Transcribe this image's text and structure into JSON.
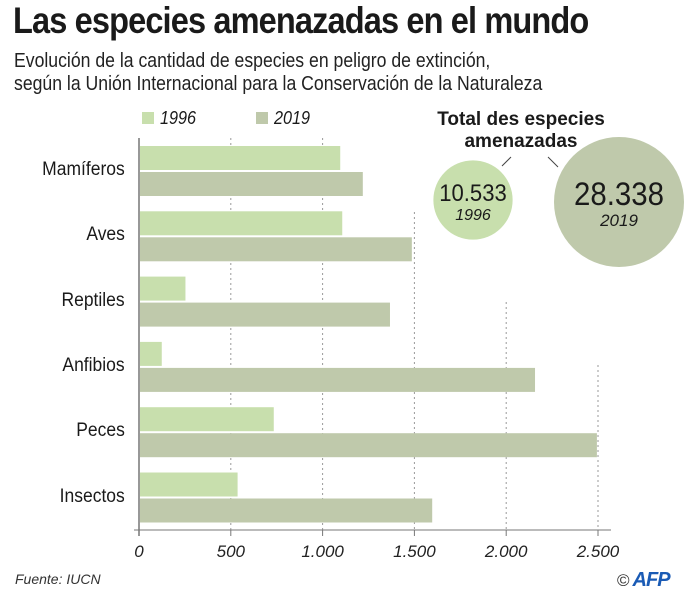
{
  "header": {
    "title": "Las especies amenazadas en el mundo",
    "subtitle_line1": "Evolución de la cantidad de especies en peligro de extinción,",
    "subtitle_line2": "según la Unión Internacional para la Conservación de la Naturaleza"
  },
  "colors": {
    "series_1996": "#c8dfad",
    "series_2019": "#bfc9ab",
    "grid": "#999999",
    "axis": "#777777",
    "afp_blue": "#1a5bb5"
  },
  "chart_data": {
    "type": "bar",
    "orientation": "horizontal",
    "title": "Las especies amenazadas en el mundo",
    "subtitle": "Evolución de la cantidad de especies en peligro de extinción, según la Unión Internacional para la Conservación de la Naturaleza",
    "categories": [
      "Mamíferos",
      "Aves",
      "Reptiles",
      "Anfibios",
      "Peces",
      "Insectos"
    ],
    "series": [
      {
        "name": "1996",
        "values": [
          1096,
          1107,
          253,
          124,
          734,
          537
        ]
      },
      {
        "name": "2019",
        "values": [
          1219,
          1486,
          1367,
          2157,
          2494,
          1597
        ]
      }
    ],
    "xlabel": "",
    "ylabel": "",
    "xlim": [
      0,
      2600
    ],
    "xticks": [
      0,
      500,
      1000,
      1500,
      2000,
      2500
    ],
    "xtick_labels": [
      "0",
      "500",
      "1.000",
      "1.500",
      "2.000",
      "2.500"
    ],
    "grid": "vertical dotted",
    "legend": {
      "placement": "top-left",
      "entries": [
        "1996",
        "2019"
      ]
    },
    "totals": {
      "title": "Total des especies amenazadas",
      "items": [
        {
          "year": "1996",
          "value": 10533,
          "label": "10.533"
        },
        {
          "year": "2019",
          "value": 28338,
          "label": "28.338"
        }
      ]
    }
  },
  "footer": {
    "source": "Fuente: IUCN",
    "copyright_symbol": "©",
    "agency": "AFP"
  }
}
